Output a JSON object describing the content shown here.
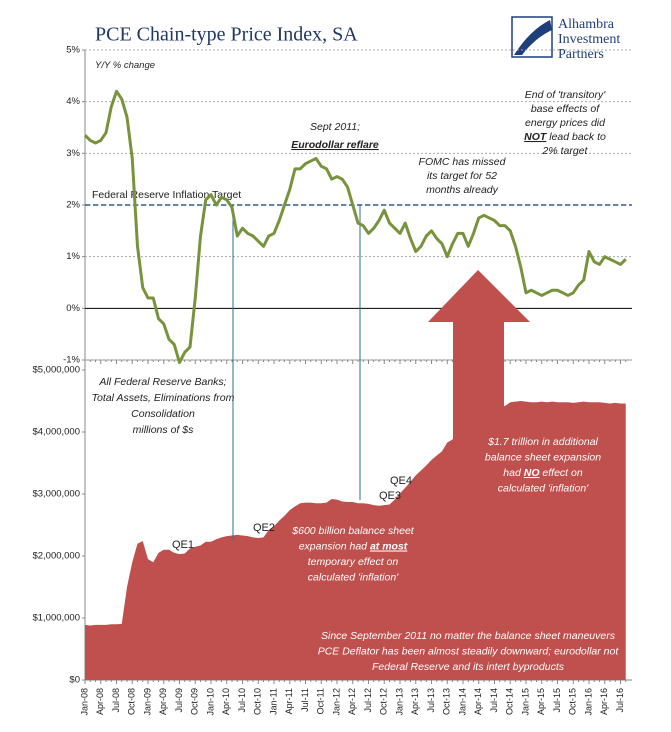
{
  "logo": [
    "Alhambra",
    "Investment",
    "Partners"
  ],
  "chart_data": [
    {
      "type": "line",
      "title": "PCE Chain-type Price Index, SA",
      "color": "#77933c",
      "grid": true,
      "ylim": [
        -1,
        5
      ],
      "yticks": [
        {
          "value": -1,
          "label": "-1%"
        },
        {
          "value": 0,
          "label": "0%"
        },
        {
          "value": 1,
          "label": "1%"
        },
        {
          "value": 2,
          "label": "2%"
        },
        {
          "value": 3,
          "label": "3%"
        },
        {
          "value": 4,
          "label": "4%"
        },
        {
          "value": 5,
          "label": "5%"
        }
      ],
      "target": {
        "value": 2,
        "label": "Federal Reserve Inflation Target",
        "color": "#2e5c9a"
      },
      "values": [
        3.35,
        3.25,
        3.2,
        3.25,
        3.4,
        3.9,
        4.2,
        4.05,
        3.7,
        2.9,
        1.2,
        0.4,
        0.2,
        0.2,
        -0.2,
        -0.3,
        -0.6,
        -0.7,
        -1.05,
        -0.85,
        -0.75,
        0.2,
        1.4,
        2.1,
        2.2,
        2.0,
        2.15,
        2.1,
        1.95,
        1.4,
        1.55,
        1.45,
        1.4,
        1.3,
        1.2,
        1.4,
        1.45,
        1.7,
        2.0,
        2.3,
        2.7,
        2.7,
        2.8,
        2.85,
        2.9,
        2.75,
        2.7,
        2.5,
        2.55,
        2.5,
        2.35,
        2.0,
        1.65,
        1.6,
        1.45,
        1.55,
        1.7,
        1.9,
        1.65,
        1.55,
        1.45,
        1.65,
        1.35,
        1.1,
        1.2,
        1.4,
        1.5,
        1.35,
        1.25,
        1.0,
        1.25,
        1.45,
        1.45,
        1.2,
        1.45,
        1.75,
        1.8,
        1.75,
        1.7,
        1.6,
        1.6,
        1.5,
        1.2,
        0.8,
        0.3,
        0.35,
        0.3,
        0.25,
        0.3,
        0.35,
        0.35,
        0.3,
        0.25,
        0.3,
        0.45,
        0.55,
        1.1,
        0.9,
        0.85,
        1.0,
        0.95,
        0.9,
        0.85,
        0.95
      ],
      "annotations": [
        [
          [
            "Y/Y % change"
          ]
        ],
        [
          [
            "Sept 2011;"
          ],
          [
            {
              "text": "Eurodollar reflare",
              "emphasis": true
            }
          ]
        ],
        [
          [
            "FOMC has missed"
          ],
          [
            "its target for 52"
          ],
          [
            "months already"
          ]
        ],
        [
          [
            "End of 'transitory'"
          ],
          [
            "base effects of"
          ],
          [
            "energy prices did"
          ],
          [
            {
              "text": "NOT",
              "emphasis": true
            },
            " lead back to"
          ],
          [
            "2% target"
          ]
        ]
      ]
    },
    {
      "type": "area",
      "color": "#c0504d",
      "ylim": [
        0,
        5000000
      ],
      "yticks": [
        {
          "value": 0,
          "label": "$0"
        },
        {
          "value": 1000000,
          "label": "$1,000,000"
        },
        {
          "value": 2000000,
          "label": "$2,000,000"
        },
        {
          "value": 3000000,
          "label": "$3,000,000"
        },
        {
          "value": 4000000,
          "label": "$4,000,000"
        },
        {
          "value": 5000000,
          "label": "$5,000,000"
        }
      ],
      "categories": [
        "Jan-08",
        null,
        null,
        "Apr-08",
        null,
        null,
        "Jul-08",
        null,
        null,
        "Oct-08",
        null,
        null,
        "Jan-09",
        null,
        null,
        "Apr-09",
        null,
        null,
        "Jul-09",
        null,
        null,
        "Oct-09",
        null,
        null,
        "Jan-10",
        null,
        null,
        "Apr-10",
        null,
        null,
        "Jul-10",
        null,
        null,
        "Oct-10",
        null,
        null,
        "Jan-11",
        null,
        null,
        "Apr-11",
        null,
        null,
        "Jul-11",
        null,
        null,
        "Oct-11",
        null,
        null,
        "Jan-12",
        null,
        null,
        "Apr-12",
        null,
        null,
        "Jul-12",
        null,
        null,
        "Oct-12",
        null,
        null,
        "Jan-13",
        null,
        null,
        "Apr-13",
        null,
        null,
        "Jul-13",
        null,
        null,
        "Oct-13",
        null,
        null,
        "Jan-14",
        null,
        null,
        "Apr-14",
        null,
        null,
        "Jul-14",
        null,
        null,
        "Oct-14",
        null,
        null,
        "Jan-15",
        null,
        null,
        "Apr-15",
        null,
        null,
        "Jul-15",
        null,
        null,
        "Oct-15",
        null,
        null,
        "Jan-16",
        null,
        null,
        "Apr-16",
        null,
        null,
        "Jul-16",
        null
      ],
      "values": [
        890000,
        880000,
        890000,
        890000,
        890000,
        900000,
        900000,
        905000,
        1500000,
        1900000,
        2200000,
        2240000,
        1950000,
        1900000,
        2050000,
        2100000,
        2100000,
        2050000,
        2030000,
        2040000,
        2120000,
        2150000,
        2170000,
        2230000,
        2230000,
        2270000,
        2300000,
        2320000,
        2330000,
        2340000,
        2330000,
        2320000,
        2300000,
        2290000,
        2300000,
        2420000,
        2480000,
        2570000,
        2650000,
        2740000,
        2800000,
        2850000,
        2860000,
        2860000,
        2850000,
        2850000,
        2860000,
        2920000,
        2910000,
        2880000,
        2870000,
        2870000,
        2850000,
        2850000,
        2840000,
        2820000,
        2810000,
        2820000,
        2830000,
        2910000,
        3010000,
        3100000,
        3200000,
        3300000,
        3380000,
        3460000,
        3550000,
        3620000,
        3690000,
        3830000,
        3880000,
        4010000,
        4060000,
        4150000,
        4210000,
        4270000,
        4300000,
        4350000,
        4390000,
        4410000,
        4420000,
        4480000,
        4490000,
        4500000,
        4490000,
        4480000,
        4480000,
        4490000,
        4480000,
        4490000,
        4480000,
        4480000,
        4480000,
        4470000,
        4480000,
        4490000,
        4480000,
        4480000,
        4480000,
        4470000,
        4460000,
        4470000,
        4460000,
        4460000
      ],
      "annotations": [
        [
          [
            "All Federal Reserve Banks;"
          ],
          [
            "Total Assets, Eliminations from"
          ],
          [
            "Consolidation"
          ],
          [
            "millions of $s"
          ]
        ],
        [
          [
            "QE1"
          ]
        ],
        [
          [
            "QE2"
          ]
        ],
        [
          [
            "QE3"
          ]
        ],
        [
          [
            "QE4"
          ]
        ],
        [
          [
            "$600 billion balance sheet"
          ],
          [
            "expansion had ",
            {
              "text": "at most",
              "emphasis": true
            }
          ],
          [
            "temporary effect on"
          ],
          [
            "calculated 'inflation'"
          ]
        ],
        [
          [
            "$1.7 trillion in additional"
          ],
          [
            "balance sheet expansion"
          ],
          [
            "had ",
            {
              "text": "NO",
              "emphasis": true
            },
            " effect on"
          ],
          [
            "calculated 'inflation'"
          ]
        ],
        [
          [
            "Since September 2011 no matter the balance sheet maneuvers"
          ],
          [
            "PCE Deflator has been almost steadily downward; eurodollar not"
          ],
          [
            "Federal Reserve and its intert byproducts"
          ]
        ]
      ]
    }
  ]
}
